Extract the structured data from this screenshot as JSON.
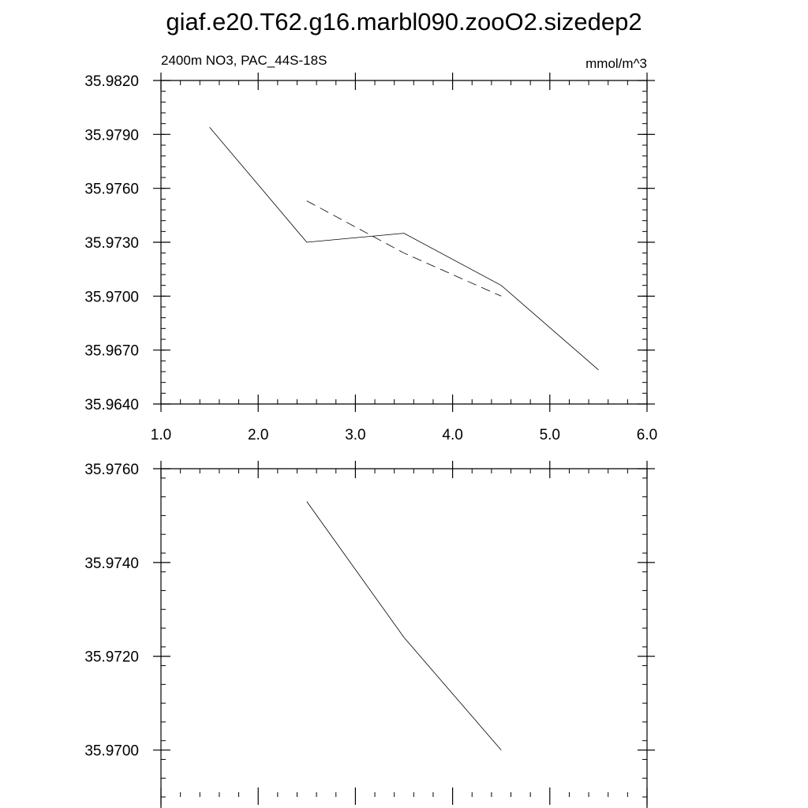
{
  "title": "giaf.e20.T62.g16.marbl090.zooO2.sizedep2",
  "chart_data": [
    {
      "type": "line",
      "subtitle_left": "2400m NO3, PAC_44S-18S",
      "subtitle_right": "mmol/m^3",
      "xlim": [
        1.0,
        6.0
      ],
      "ylim": [
        35.964,
        35.982
      ],
      "x_ticks": [
        1.0,
        2.0,
        3.0,
        4.0,
        5.0,
        6.0
      ],
      "x_tick_labels": [
        "1.0",
        "2.0",
        "3.0",
        "4.0",
        "5.0",
        "6.0"
      ],
      "y_ticks": [
        35.964,
        35.967,
        35.97,
        35.973,
        35.976,
        35.979,
        35.982
      ],
      "y_tick_labels": [
        "35.9640",
        "35.9670",
        "35.9700",
        "35.9730",
        "35.9760",
        "35.9790",
        "35.9820"
      ],
      "grid": false,
      "series": [
        {
          "style": "solid",
          "x": [
            1.5,
            2.5,
            3.5,
            4.5,
            5.5
          ],
          "y": [
            35.9794,
            35.973,
            35.9735,
            35.9706,
            35.9659
          ]
        },
        {
          "style": "dashed",
          "x": [
            2.5,
            3.5,
            4.5
          ],
          "y": [
            35.9753,
            35.9724,
            35.97
          ]
        }
      ]
    },
    {
      "type": "line",
      "xlim": [
        1.0,
        6.0
      ],
      "ylim": [
        35.969,
        35.976
      ],
      "y_ticks": [
        35.97,
        35.972,
        35.974,
        35.976
      ],
      "y_tick_labels": [
        "35.9700",
        "35.9720",
        "35.9740",
        "35.9760"
      ],
      "grid": false,
      "series": [
        {
          "style": "solid",
          "x": [
            2.5,
            3.5,
            4.5
          ],
          "y": [
            35.9753,
            35.9724,
            35.97
          ]
        }
      ]
    }
  ]
}
